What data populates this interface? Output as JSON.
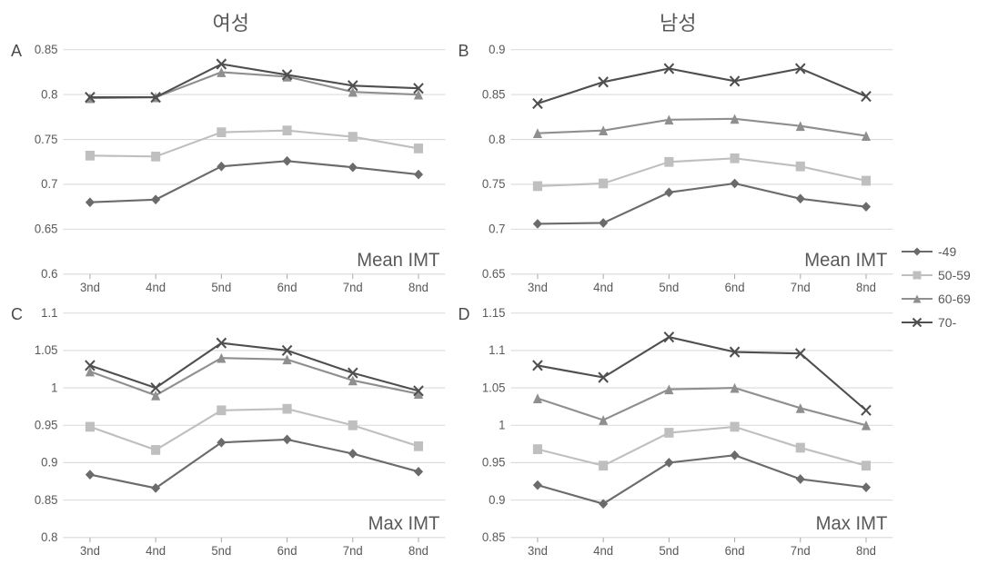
{
  "columnTitles": {
    "left": "여성",
    "right": "남성"
  },
  "categories": [
    "3nd",
    "4nd",
    "5nd",
    "6nd",
    "7nd",
    "8nd"
  ],
  "legend": [
    {
      "label": "-49",
      "marker": "diamond",
      "color": "#6b6b6b"
    },
    {
      "label": "50-59",
      "marker": "square",
      "color": "#bfbfbf"
    },
    {
      "label": "60-69",
      "marker": "triangle",
      "color": "#8f8f8f"
    },
    {
      "label": "70-",
      "marker": "x",
      "color": "#4f4f4f"
    }
  ],
  "axis_fontsize": 13,
  "corner_fontsize": 20,
  "grid_color": "#d9d9d9",
  "axis_color": "#a8a8a8",
  "background_color": "#ffffff",
  "line_width": 2,
  "marker_size": 5,
  "panels": {
    "A": {
      "title_corner": "Mean IMT",
      "ylim": [
        0.6,
        0.85
      ],
      "ytick_step": 0.05,
      "series": [
        {
          "key": "-49",
          "values": [
            0.68,
            0.683,
            0.72,
            0.726,
            0.719,
            0.711
          ]
        },
        {
          "key": "50-59",
          "values": [
            0.732,
            0.731,
            0.758,
            0.76,
            0.753,
            0.74
          ]
        },
        {
          "key": "60-69",
          "values": [
            0.796,
            0.797,
            0.825,
            0.82,
            0.803,
            0.8
          ]
        },
        {
          "key": "70-",
          "values": [
            0.797,
            0.797,
            0.834,
            0.822,
            0.81,
            0.807
          ]
        }
      ]
    },
    "B": {
      "title_corner": "Mean IMT",
      "ylim": [
        0.65,
        0.9
      ],
      "ytick_step": 0.05,
      "series": [
        {
          "key": "-49",
          "values": [
            0.706,
            0.707,
            0.741,
            0.751,
            0.734,
            0.725
          ]
        },
        {
          "key": "50-59",
          "values": [
            0.748,
            0.751,
            0.775,
            0.779,
            0.77,
            0.754
          ]
        },
        {
          "key": "60-69",
          "values": [
            0.807,
            0.81,
            0.822,
            0.823,
            0.815,
            0.804
          ]
        },
        {
          "key": "70-",
          "values": [
            0.84,
            0.864,
            0.879,
            0.865,
            0.879,
            0.848
          ]
        }
      ]
    },
    "C": {
      "title_corner": "Max IMT",
      "ylim": [
        0.8,
        1.1
      ],
      "ytick_step": 0.05,
      "series": [
        {
          "key": "-49",
          "values": [
            0.884,
            0.866,
            0.927,
            0.931,
            0.912,
            0.888
          ]
        },
        {
          "key": "50-59",
          "values": [
            0.948,
            0.917,
            0.97,
            0.972,
            0.95,
            0.922
          ]
        },
        {
          "key": "60-69",
          "values": [
            1.022,
            0.99,
            1.04,
            1.038,
            1.01,
            0.992
          ]
        },
        {
          "key": "70-",
          "values": [
            1.03,
            1.0,
            1.06,
            1.05,
            1.02,
            0.996
          ]
        }
      ]
    },
    "D": {
      "title_corner": "Max IMT",
      "ylim": [
        0.85,
        1.15
      ],
      "ytick_step": 0.05,
      "series": [
        {
          "key": "-49",
          "values": [
            0.92,
            0.895,
            0.95,
            0.96,
            0.928,
            0.917
          ]
        },
        {
          "key": "50-59",
          "values": [
            0.968,
            0.946,
            0.99,
            0.998,
            0.97,
            0.946
          ]
        },
        {
          "key": "60-69",
          "values": [
            1.036,
            1.007,
            1.048,
            1.05,
            1.023,
            1.0
          ]
        },
        {
          "key": "70-",
          "values": [
            1.08,
            1.064,
            1.118,
            1.098,
            1.096,
            1.02
          ]
        }
      ]
    }
  }
}
